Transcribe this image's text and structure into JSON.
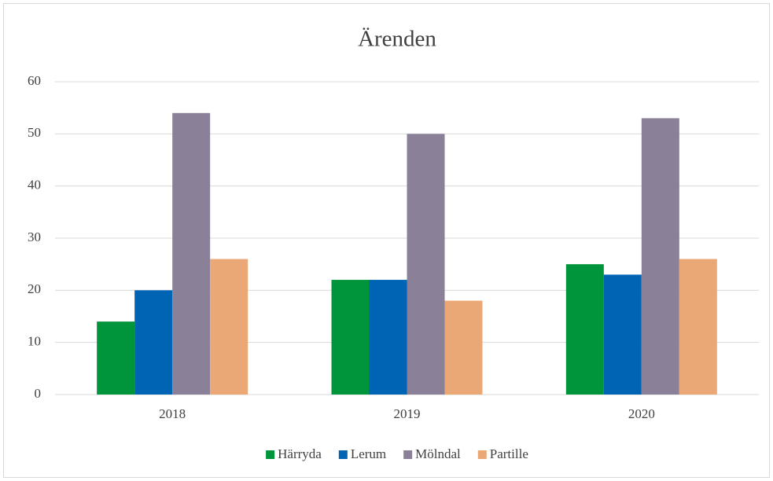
{
  "chart_data": {
    "type": "bar",
    "title": "Ärenden",
    "categories": [
      "2018",
      "2019",
      "2020"
    ],
    "series": [
      {
        "name": "Härryda",
        "color": "#00953a",
        "values": [
          14,
          22,
          25
        ]
      },
      {
        "name": "Lerum",
        "color": "#0064b4",
        "values": [
          20,
          22,
          23
        ]
      },
      {
        "name": "Mölndal",
        "color": "#8a8199",
        "values": [
          54,
          50,
          53
        ]
      },
      {
        "name": "Partille",
        "color": "#eba877",
        "values": [
          26,
          18,
          26
        ]
      }
    ],
    "ylim": [
      0,
      60
    ],
    "yticks": [
      0,
      10,
      20,
      30,
      40,
      50,
      60
    ],
    "grid": true,
    "legend": "bottom"
  }
}
